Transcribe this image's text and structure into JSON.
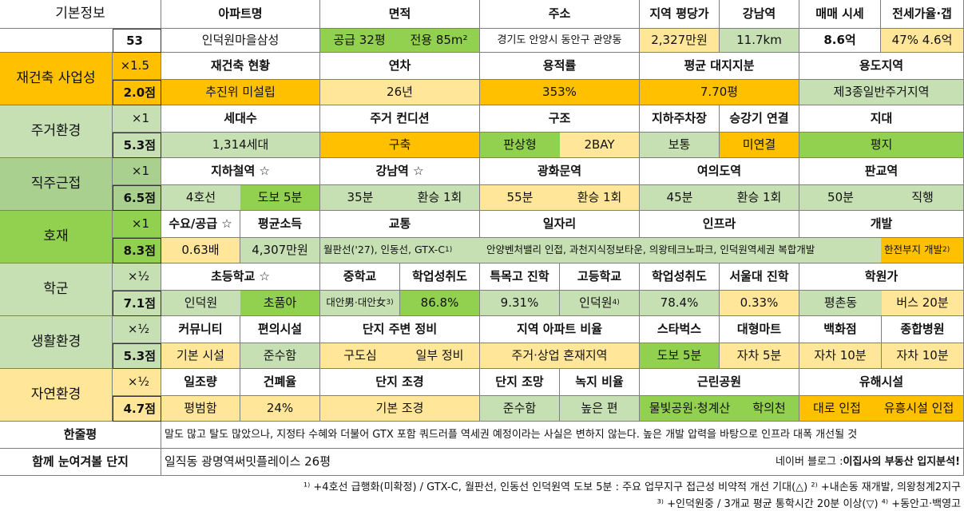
{
  "colors": {
    "white": "#ffffff",
    "green": "#92d050",
    "light_green": "#c6e0b4",
    "orange": "#ffc000",
    "light_yellow": "#ffe699",
    "sage": "#a9d08e",
    "border": "#7f7f7f"
  },
  "basic": {
    "label": "기본정보",
    "number": "53",
    "headers": [
      "아파트명",
      "면적",
      "주소",
      "지역 평당가",
      "강남역",
      "매매 시세",
      "전세가율·갭"
    ],
    "values": [
      "인덕원마을삼성",
      "공급 32평",
      "전용 85m²",
      "경기도 안양시 동안구 관양동",
      "2,327만원",
      "11.7km",
      "8.6억",
      "47%  4.6억"
    ]
  },
  "rebuild": {
    "label": "재건축 사업성",
    "mult": "×1.5",
    "score": "2.0점",
    "headers": [
      "재건축 현황",
      "연차",
      "용적률",
      "평균 대지지분",
      "용도지역"
    ],
    "values": [
      "추진위 미설립",
      "26년",
      "353%",
      "7.70평",
      "제3종일반주거지역"
    ]
  },
  "living": {
    "label": "주거환경",
    "mult": "×1",
    "score": "5.3점",
    "headers": [
      "세대수",
      "주거 컨디션",
      "구조",
      "지하주차장",
      "승강기 연결",
      "지대"
    ],
    "values": [
      "1,314세대",
      "구축",
      "판상형",
      "2BAY",
      "보통",
      "미연결",
      "평지"
    ]
  },
  "commute": {
    "label": "직주근접",
    "mult": "×1",
    "score": "6.5점",
    "headers": [
      "지하철역 ☆",
      "강남역 ☆",
      "광화문역",
      "여의도역",
      "판교역"
    ],
    "values": [
      "4호선",
      "도보 5분",
      "35분",
      "환승 1회",
      "55분",
      "환승 1회",
      "45분",
      "환승 1회",
      "50분",
      "직행"
    ]
  },
  "dev": {
    "label": "호재",
    "mult": "×1",
    "score": "8.3점",
    "headers": [
      "수요/공급 ☆",
      "평균소득",
      "교통",
      "일자리",
      "인프라",
      "개발"
    ],
    "values": [
      "0.63배",
      "4,307만원",
      "월판선('27), 인동선, GTX-C",
      "안양벤처밸리 인접, 과천지식정보타운, 의왕테크노파크, 인덕원역세권 복합개발",
      "한전부지 개발"
    ],
    "sup1": "1)",
    "sup2": "2)"
  },
  "school": {
    "label": "학군",
    "mult": "×½",
    "score": "7.1점",
    "headers": [
      "초등학교 ☆",
      "중학교",
      "학업성취도",
      "특목고 진학",
      "고등학교",
      "학업성취도",
      "서울대 진학",
      "학원가"
    ],
    "values": [
      "인덕원",
      "초품아",
      "대안男·대안女",
      "86.8%",
      "9.31%",
      "인덕원",
      "78.4%",
      "0.33%",
      "평촌동",
      "버스 20분"
    ],
    "sup3": "3)",
    "sup4": "4)"
  },
  "life": {
    "label": "생활환경",
    "mult": "×½",
    "score": "5.3점",
    "headers": [
      "커뮤니티",
      "편의시설",
      "단지 주변 정비",
      "지역 아파트 비율",
      "스타벅스",
      "대형마트",
      "백화점",
      "종합병원"
    ],
    "values": [
      "기본 시설",
      "준수함",
      "구도심",
      "일부 정비",
      "주거·상업 혼재지역",
      "도보 5분",
      "자차 5분",
      "자차 10분",
      "자차 10분"
    ]
  },
  "nature": {
    "label": "자연환경",
    "mult": "×½",
    "score": "4.7점",
    "headers": [
      "일조량",
      "건폐율",
      "단지 조경",
      "단지 조망",
      "녹지 비율",
      "근린공원",
      "유해시설"
    ],
    "values": [
      "평범함",
      "24%",
      "기본 조경",
      "준수함",
      "높은 편",
      "물빛공원·청계산",
      "학의천",
      "대로 인접",
      "유흥시설 인접"
    ]
  },
  "summary": {
    "label": "한줄평",
    "text": "말도 많고 탈도 많았으나, 지정타 수혜와 더불어 GTX 포함 쿼드러플 역세권 예정이라는 사실은 변하지 않는다. 높은 개발 압력을 바탕으로 인프라 대폭 개선될 것"
  },
  "related": {
    "label": "함께 눈여겨볼 단지",
    "text": "일직동 광명역써밋플레이스 26평",
    "blog_prefix": "네이버 블로그 : ",
    "blog_name": "이집사의 부동산 입지분석!"
  },
  "footnotes": {
    "line1": "¹⁾ +4호선 급행화(미확정) / GTX-C, 월판선, 인동선 인덕원역 도보 5분 : 주요 업무지구 접근성 비약적 개선 기대(△)  ²⁾ +내손동 재개발, 의왕청계2지구",
    "line2": "³⁾ +인덕원중 / 3개교 평균 통학시간 20분 이상(▽)  ⁴⁾ +동안고·백영고"
  }
}
